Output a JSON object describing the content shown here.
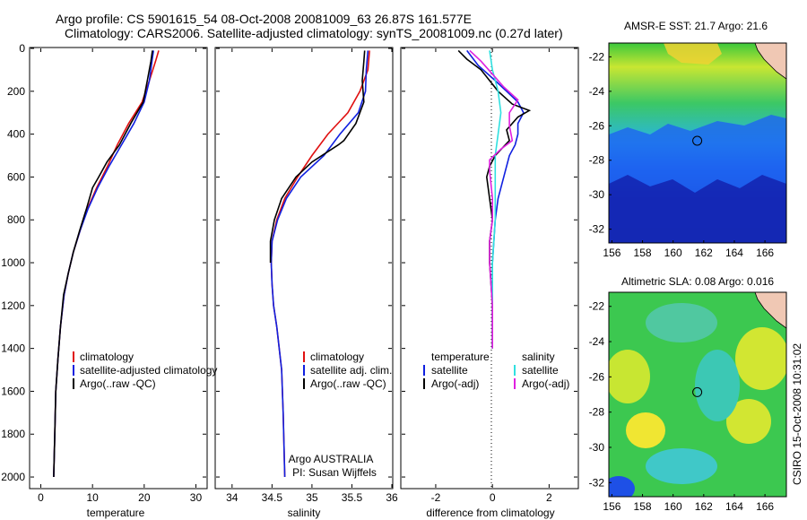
{
  "header": {
    "line1": "Argo profile: CS 5901615_54 08-Oct-2008 20081009_63 26.87S 161.577E",
    "line2": "Climatology: CARS2006. Satellite-adjusted climatology: synTS_20081009.nc (0.27d later)"
  },
  "side_label": "CSIRO 15-Oct-2008 10:31:02",
  "colors": {
    "climatology": "#e01010",
    "satellite": "#1020e0",
    "argo": "#000000",
    "sat_diff": "#30e0e0",
    "argo_diff": "#e020e0"
  },
  "chart_data": [
    {
      "type": "line",
      "id": "temperature",
      "xlabel": "temperature",
      "ylabel": "",
      "xlim": [
        -2,
        32
      ],
      "ylim": [
        2050,
        0
      ],
      "xticks": [
        0,
        10,
        20,
        30
      ],
      "yticks": [
        0,
        200,
        400,
        600,
        800,
        1000,
        1200,
        1400,
        1600,
        1800,
        2000
      ],
      "legend": [
        "climatology",
        "satellite-adjusted climatology",
        "Argo(..raw -QC)"
      ],
      "legend_placement": "lower-right",
      "series": [
        {
          "name": "climatology",
          "color": "#e01010",
          "points": [
            [
              22.8,
              10
            ],
            [
              22.2,
              60
            ],
            [
              21.0,
              150
            ],
            [
              19.6,
              250
            ],
            [
              17.0,
              350
            ],
            [
              14.8,
              450
            ],
            [
              12.9,
              550
            ],
            [
              10.8,
              650
            ],
            [
              9.0,
              750
            ],
            [
              7.6,
              850
            ],
            [
              6.3,
              950
            ],
            [
              5.3,
              1050
            ],
            [
              4.5,
              1150
            ],
            [
              3.8,
              1300
            ],
            [
              3.3,
              1450
            ],
            [
              2.9,
              1600
            ],
            [
              2.7,
              1800
            ],
            [
              2.5,
              2000
            ]
          ]
        },
        {
          "name": "satellite-adjusted climatology",
          "color": "#1020e0",
          "points": [
            [
              21.8,
              10
            ],
            [
              21.5,
              60
            ],
            [
              21.0,
              150
            ],
            [
              20.0,
              250
            ],
            [
              18.0,
              350
            ],
            [
              15.6,
              450
            ],
            [
              13.2,
              550
            ],
            [
              11.0,
              650
            ],
            [
              9.1,
              750
            ],
            [
              7.6,
              850
            ],
            [
              6.3,
              950
            ],
            [
              5.3,
              1050
            ],
            [
              4.5,
              1150
            ],
            [
              3.8,
              1300
            ],
            [
              3.3,
              1450
            ],
            [
              2.9,
              1600
            ],
            [
              2.7,
              1800
            ],
            [
              2.5,
              2000
            ]
          ]
        },
        {
          "name": "Argo(..raw -QC)",
          "color": "#000000",
          "points": [
            [
              21.6,
              10
            ],
            [
              21.3,
              60
            ],
            [
              20.6,
              150
            ],
            [
              19.8,
              250
            ],
            [
              17.4,
              350
            ],
            [
              15.2,
              450
            ],
            [
              12.8,
              530
            ],
            [
              11.2,
              600
            ],
            [
              10.0,
              650
            ],
            [
              8.8,
              750
            ],
            [
              7.5,
              850
            ],
            [
              6.3,
              950
            ],
            [
              5.3,
              1050
            ],
            [
              4.4,
              1150
            ],
            [
              3.8,
              1300
            ],
            [
              3.3,
              1450
            ],
            [
              2.9,
              1600
            ],
            [
              2.7,
              1800
            ],
            [
              2.5,
              2000
            ]
          ]
        }
      ]
    },
    {
      "type": "line",
      "id": "salinity",
      "xlabel": "salinity",
      "ylabel": "",
      "xlim": [
        33.8,
        36.0
      ],
      "ylim": [
        2050,
        0
      ],
      "xticks": [
        34,
        34.5,
        35,
        35.5,
        36
      ],
      "legend": [
        "climatology",
        "satellite adj. clim.",
        "Argo(..raw -QC)"
      ],
      "legend_placement": "lower-right",
      "annotation": [
        "Argo AUSTRALIA",
        "PI: Susan Wijffels"
      ],
      "series": [
        {
          "name": "climatology",
          "color": "#e01010",
          "points": [
            [
              35.72,
              10
            ],
            [
              35.7,
              100
            ],
            [
              35.6,
              200
            ],
            [
              35.45,
              300
            ],
            [
              35.2,
              400
            ],
            [
              35.0,
              500
            ],
            [
              34.82,
              600
            ],
            [
              34.66,
              700
            ],
            [
              34.56,
              800
            ],
            [
              34.5,
              900
            ],
            [
              34.49,
              1000
            ],
            [
              34.5,
              1100
            ],
            [
              34.52,
              1200
            ],
            [
              34.56,
              1300
            ],
            [
              34.59,
              1400
            ],
            [
              34.62,
              1500
            ],
            [
              34.64,
              1700
            ],
            [
              34.66,
              2000
            ]
          ]
        },
        {
          "name": "satellite adj. clim.",
          "color": "#1020e0",
          "points": [
            [
              35.7,
              10
            ],
            [
              35.68,
              100
            ],
            [
              35.67,
              200
            ],
            [
              35.58,
              300
            ],
            [
              35.35,
              400
            ],
            [
              35.15,
              500
            ],
            [
              34.86,
              600
            ],
            [
              34.68,
              700
            ],
            [
              34.57,
              800
            ],
            [
              34.5,
              900
            ],
            [
              34.49,
              1000
            ],
            [
              34.5,
              1100
            ],
            [
              34.52,
              1200
            ],
            [
              34.56,
              1300
            ],
            [
              34.59,
              1400
            ],
            [
              34.62,
              1500
            ],
            [
              34.64,
              1700
            ],
            [
              34.66,
              2000
            ]
          ]
        },
        {
          "name": "Argo(..raw -QC)",
          "color": "#000000",
          "points": [
            [
              35.66,
              10
            ],
            [
              35.65,
              60
            ],
            [
              35.63,
              150
            ],
            [
              35.65,
              250
            ],
            [
              35.55,
              350
            ],
            [
              35.4,
              430
            ],
            [
              35.33,
              450
            ],
            [
              35.0,
              530
            ],
            [
              34.8,
              600
            ],
            [
              34.62,
              700
            ],
            [
              34.53,
              800
            ],
            [
              34.48,
              900
            ],
            [
              34.48,
              1000
            ]
          ]
        }
      ]
    },
    {
      "type": "line",
      "id": "difference",
      "xlabel": "difference from climatology",
      "ylabel": "",
      "xlim": [
        -3.2,
        3.0
      ],
      "ylim": [
        2050,
        0
      ],
      "xticks": [
        -2,
        0,
        2
      ],
      "legend_groups": [
        {
          "title": "temperature",
          "items": [
            "satellite",
            "Argo(-adj)"
          ]
        },
        {
          "title": "salinity",
          "items": [
            "satellite",
            "Argo(-adj)"
          ]
        }
      ],
      "legend_placement": "lower-right",
      "series": [
        {
          "name": "temperature satellite",
          "color": "#1020e0",
          "points": [
            [
              -0.9,
              10
            ],
            [
              -0.5,
              80
            ],
            [
              0.1,
              150
            ],
            [
              0.5,
              200
            ],
            [
              0.9,
              250
            ],
            [
              1.1,
              300
            ],
            [
              0.9,
              350
            ],
            [
              0.9,
              400
            ],
            [
              0.8,
              450
            ],
            [
              0.6,
              500
            ],
            [
              0.4,
              600
            ],
            [
              0.2,
              700
            ],
            [
              0.1,
              800
            ],
            [
              0.0,
              1000
            ],
            [
              0.0,
              1400
            ]
          ]
        },
        {
          "name": "temperature Argo(-adj)",
          "color": "#000000",
          "points": [
            [
              -1.2,
              10
            ],
            [
              -0.9,
              50
            ],
            [
              -0.4,
              100
            ],
            [
              0.2,
              200
            ],
            [
              0.7,
              260
            ],
            [
              1.3,
              290
            ],
            [
              0.9,
              320
            ],
            [
              0.5,
              380
            ],
            [
              0.6,
              430
            ],
            [
              0.1,
              500
            ],
            [
              -0.1,
              550
            ],
            [
              -0.2,
              600
            ],
            [
              -0.1,
              700
            ],
            [
              0.0,
              800
            ],
            [
              -0.1,
              900
            ],
            [
              -0.1,
              1000
            ],
            [
              0.0,
              1200
            ],
            [
              0.0,
              1400
            ]
          ]
        },
        {
          "name": "salinity satellite",
          "color": "#30e0e0",
          "points": [
            [
              -0.1,
              10
            ],
            [
              0.0,
              100
            ],
            [
              0.2,
              200
            ],
            [
              0.3,
              300
            ],
            [
              0.2,
              400
            ],
            [
              0.1,
              500
            ],
            [
              0.1,
              600
            ],
            [
              0.1,
              700
            ],
            [
              0.1,
              800
            ],
            [
              0.0,
              1000
            ],
            [
              0.0,
              1200
            ],
            [
              0.0,
              1400
            ]
          ]
        },
        {
          "name": "salinity Argo(-adj)",
          "color": "#e020e0",
          "points": [
            [
              -0.8,
              10
            ],
            [
              -0.4,
              60
            ],
            [
              0.0,
              120
            ],
            [
              0.4,
              180
            ],
            [
              0.9,
              240
            ],
            [
              0.6,
              300
            ],
            [
              0.6,
              360
            ],
            [
              0.7,
              430
            ],
            [
              0.3,
              470
            ],
            [
              -0.1,
              520
            ],
            [
              -0.1,
              570
            ],
            [
              0.0,
              700
            ],
            [
              0.0,
              800
            ],
            [
              -0.1,
              900
            ],
            [
              -0.1,
              1000
            ],
            [
              0.0,
              1200
            ],
            [
              0.0,
              1400
            ]
          ]
        }
      ]
    },
    {
      "type": "heatmap",
      "id": "sst_map",
      "title": "AMSR-E SST: 21.7 Argo: 21.6",
      "xlim": [
        155.8,
        167.4
      ],
      "ylim": [
        -32.8,
        -21.2
      ],
      "xticks": [
        156,
        158,
        160,
        162,
        164,
        166
      ],
      "yticks": [
        -22,
        -24,
        -26,
        -28,
        -30,
        -32
      ],
      "marker": [
        161.577,
        -26.87
      ]
    },
    {
      "type": "heatmap",
      "id": "sla_map",
      "title": "Altimetric SLA: 0.08 Argo: 0.016",
      "xlim": [
        155.8,
        167.4
      ],
      "ylim": [
        -32.8,
        -21.2
      ],
      "xticks": [
        156,
        158,
        160,
        162,
        164,
        166
      ],
      "yticks": [
        -22,
        -24,
        -26,
        -28,
        -30,
        -32
      ],
      "marker": [
        161.577,
        -26.87
      ]
    }
  ]
}
